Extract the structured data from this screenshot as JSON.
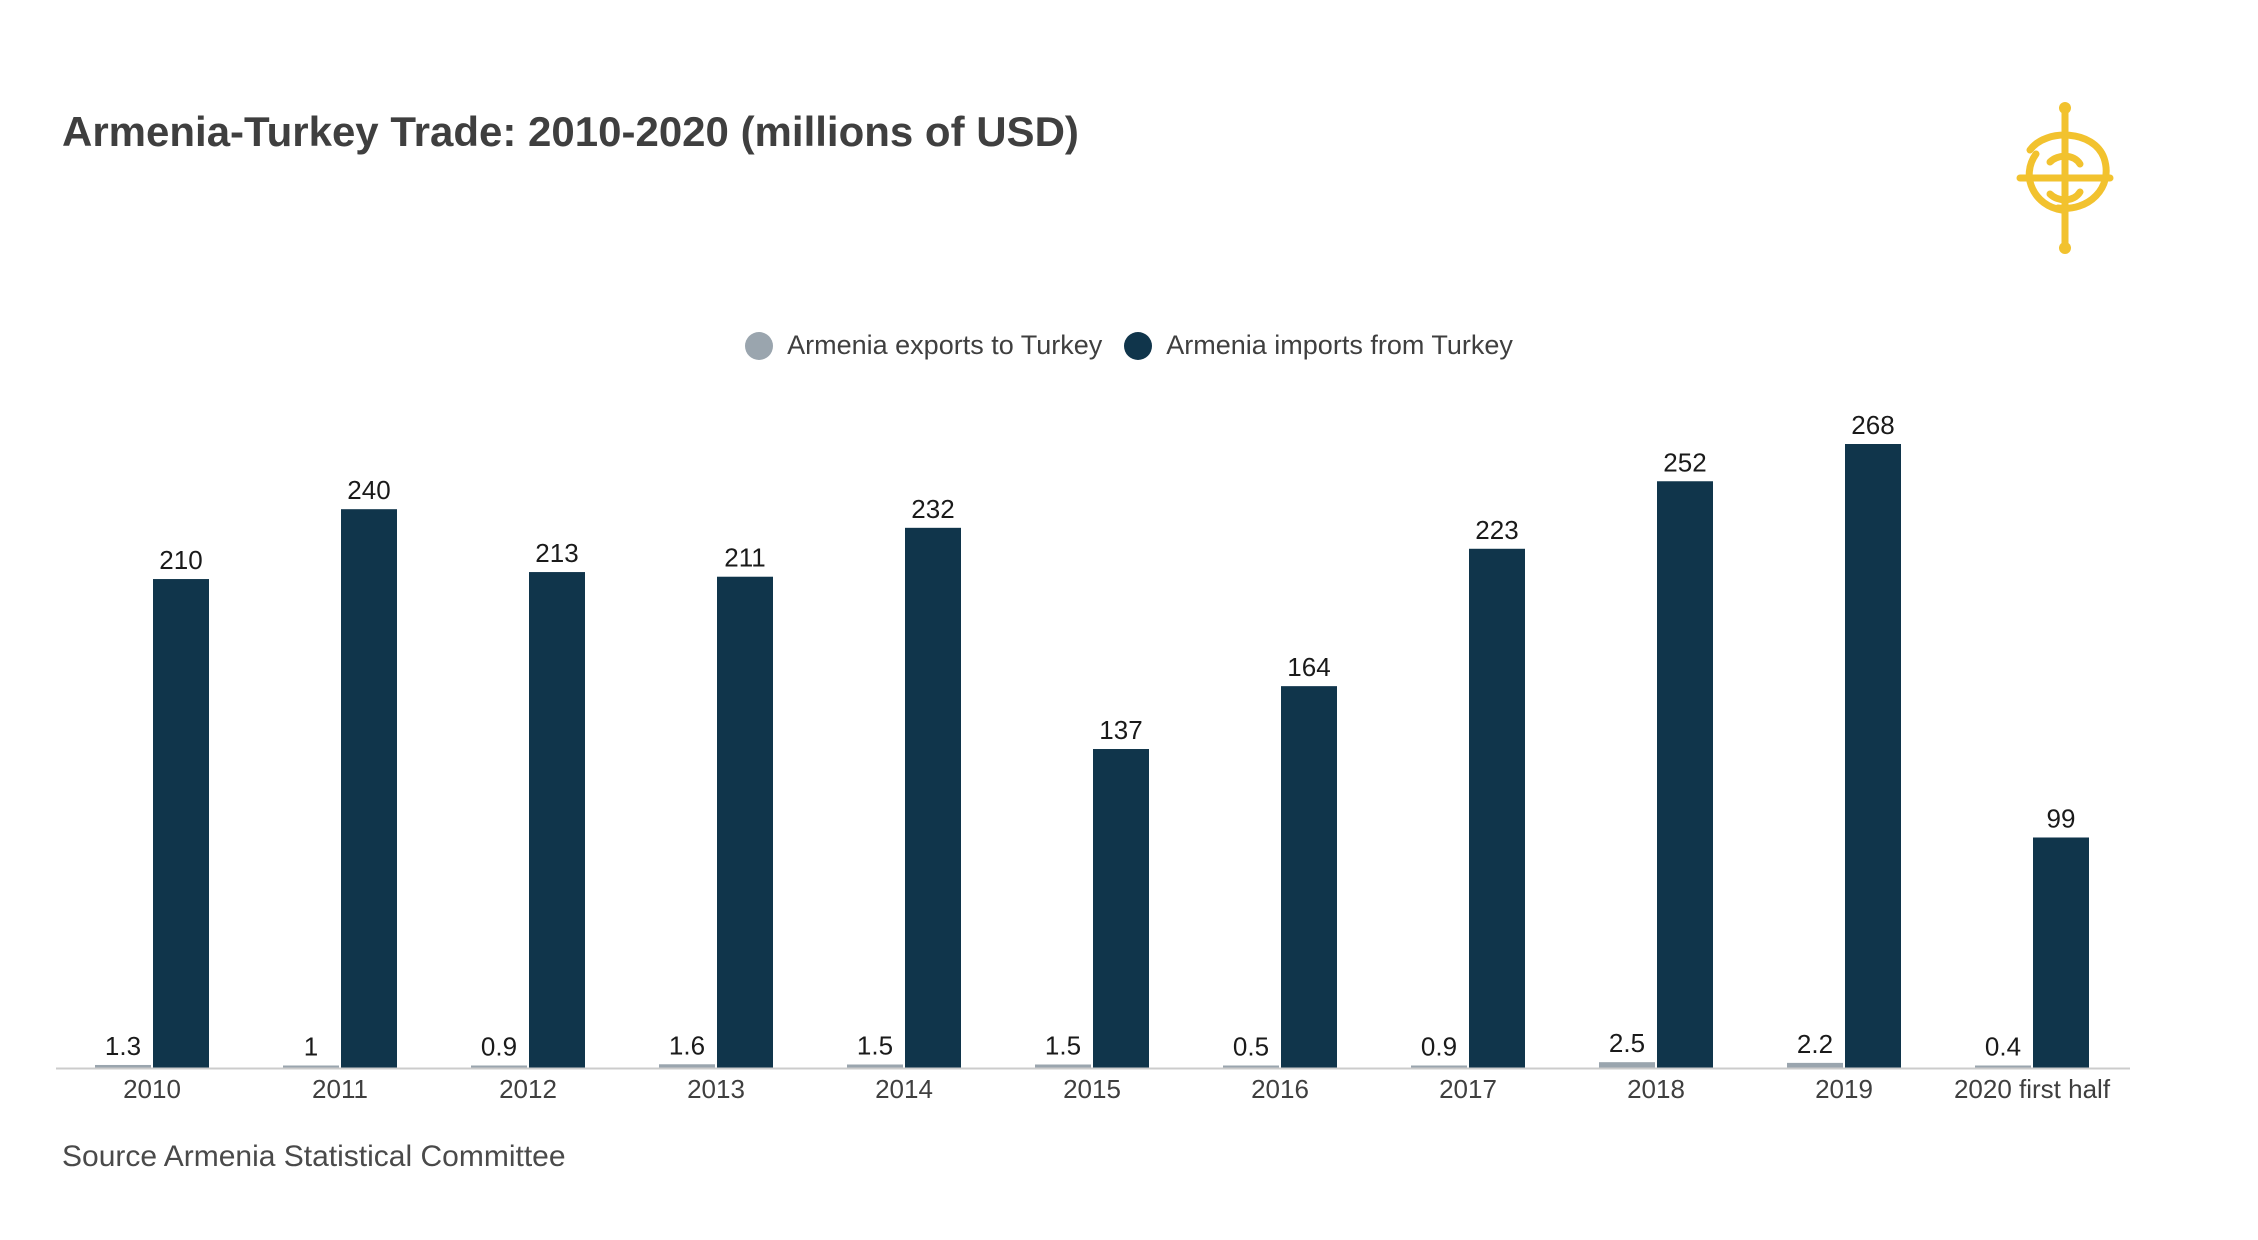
{
  "header": {
    "title": "Armenia-Turkey Trade: 2010-2020 (millions of USD)"
  },
  "footer": {
    "source": "Source Armenia Statistical Committee"
  },
  "colors": {
    "exports": "#9aa5ae",
    "imports": "#10354b",
    "logo": "#f2c22e",
    "axis": "#cccccc",
    "text": "#3f3f3f"
  },
  "chart_data": {
    "type": "bar",
    "title": "Armenia-Turkey Trade: 2010-2020 (millions of USD)",
    "xlabel": "",
    "ylabel": "",
    "ylim": [
      0,
      268
    ],
    "grid": false,
    "legend_position": "top-center",
    "categories": [
      "2010",
      "2011",
      "2012",
      "2013",
      "2014",
      "2015",
      "2016",
      "2017",
      "2018",
      "2019",
      "2020 first half"
    ],
    "series": [
      {
        "name": "Armenia exports to Turkey",
        "values": [
          1.3,
          1,
          0.9,
          1.6,
          1.5,
          1.5,
          0.5,
          0.9,
          2.5,
          2.2,
          0.4
        ],
        "labels": [
          "1.3",
          "1",
          "0.9",
          "1.6",
          "1.5",
          "1.5",
          "0.5",
          "0.9",
          "2.5",
          "2.2",
          "0.4"
        ]
      },
      {
        "name": "Armenia imports from Turkey",
        "values": [
          210,
          240,
          213,
          211,
          232,
          137,
          164,
          223,
          252,
          268,
          99
        ],
        "labels": [
          "210",
          "240",
          "213",
          "211",
          "232",
          "137",
          "164",
          "223",
          "252",
          "268",
          "99"
        ]
      }
    ]
  }
}
